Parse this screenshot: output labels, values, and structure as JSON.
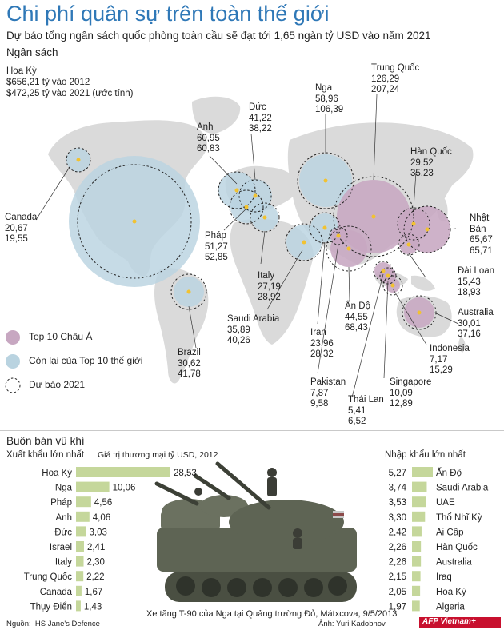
{
  "title": "Chi phí quân sự trên toàn thế giới",
  "subtitle": "Dự báo tổng ngân sách quốc phòng toàn cầu sẽ đạt tới 1,65 ngàn tỷ USD vào năm 2021",
  "budget_section_title": "Ngân sách",
  "colors": {
    "title": "#2f78b7",
    "asia": "#c7a7c1",
    "rest": "#b9d3e0",
    "land": "#d8d8d8",
    "bar": "#c5d79b",
    "dot": "#f2c230"
  },
  "legend": {
    "asia": "Top 10 Châu Á",
    "rest": "Còn lại của Top 10 thế giới",
    "forecast": "Dự báo 2021"
  },
  "countries": {
    "us": {
      "name": "Hoa Kỳ",
      "line1": "$656,21 tỷ vào 2012",
      "line2": "$472,25 tỷ vào 2021 (ước tính)"
    },
    "canada": {
      "name": "Canada",
      "v2012": "20,67",
      "v2021": "19,55"
    },
    "uk": {
      "name": "Anh",
      "v2012": "60,95",
      "v2021": "60,83"
    },
    "germany": {
      "name": "Đức",
      "v2012": "41,22",
      "v2021": "38,22"
    },
    "france": {
      "name": "Pháp",
      "v2012": "51,27",
      "v2021": "52,85"
    },
    "italy": {
      "name": "Italy",
      "v2012": "27,19",
      "v2021": "28,92"
    },
    "russia": {
      "name": "Nga",
      "v2012": "58,96",
      "v2021": "106,39"
    },
    "china": {
      "name": "Trung Quốc",
      "v2012": "126,29",
      "v2021": "207,24"
    },
    "korea": {
      "name": "Hàn Quốc",
      "v2012": "29,52",
      "v2021": "35,23"
    },
    "japan": {
      "name": "Nhật\nBản",
      "v2012": "65,67",
      "v2021": "65,71"
    },
    "taiwan": {
      "name": "Đài Loan",
      "v2012": "15,43",
      "v2021": "18,93"
    },
    "australia": {
      "name": "Australia",
      "v2012": "30,01",
      "v2021": "37,16"
    },
    "indonesia": {
      "name": "Indonesia",
      "v2012": "7,17",
      "v2021": "15,29"
    },
    "singapore": {
      "name": "Singapore",
      "v2012": "10,09",
      "v2021": "12,89"
    },
    "thailand": {
      "name": "Thái Lan",
      "v2012": "5,41",
      "v2021": "6,52"
    },
    "pakistan": {
      "name": "Pakistan",
      "v2012": "7,87",
      "v2021": "9,58"
    },
    "iran": {
      "name": "Iran",
      "v2012": "23,96",
      "v2021": "28,32"
    },
    "india": {
      "name": "Ấn Độ",
      "v2012": "44,55",
      "v2021": "68,43"
    },
    "saudi": {
      "name": "Saudi Arabia",
      "v2012": "35,89",
      "v2021": "40,26"
    },
    "brazil": {
      "name": "Brazil",
      "v2012": "30,62",
      "v2021": "41,78"
    }
  },
  "arms_section_title": "Buôn bán vũ khí",
  "exports_title": "Xuất khẩu lớn nhất",
  "trade_value_label": "Giá trị thương mại tỷ USD, 2012",
  "imports_title": "Nhập khẩu lớn nhất",
  "chart_data": [
    {
      "type": "bar",
      "title": "Xuất khẩu lớn nhất",
      "subtitle": "Giá trị thương mại tỷ USD, 2012",
      "categories": [
        "Hoa Kỳ",
        "Nga",
        "Pháp",
        "Anh",
        "Đức",
        "Israel",
        "Italy",
        "Trung Quốc",
        "Canada",
        "Thụy Điển"
      ],
      "values": [
        28.53,
        10.06,
        4.56,
        4.06,
        3.03,
        2.41,
        2.3,
        2.22,
        1.67,
        1.43
      ],
      "labels": [
        "28,53",
        "10,06",
        "4,56",
        "4,06",
        "3,03",
        "2,41",
        "2,30",
        "2,22",
        "1,67",
        "1,43"
      ]
    },
    {
      "type": "bar",
      "title": "Nhập khẩu lớn nhất",
      "categories": [
        "Ấn Độ",
        "Saudi Arabia",
        "UAE",
        "Thổ Nhĩ Kỳ",
        "Ai Cập",
        "Hàn Quốc",
        "Australia",
        "Iraq",
        "Hoa Kỳ",
        "Algeria"
      ],
      "values": [
        5.27,
        3.74,
        3.53,
        3.3,
        2.42,
        2.26,
        2.26,
        2.15,
        2.05,
        1.97
      ],
      "labels": [
        "5,27",
        "3,74",
        "3,53",
        "3,30",
        "2,42",
        "2,26",
        "2,26",
        "2,15",
        "2,05",
        "1,97"
      ]
    }
  ],
  "photo_caption": "Xe tăng T-90 của Nga tại Quảng trường Đỏ, Mátxcova, 9/5/2013",
  "photo_credit": "Ảnh: Yuri Kadobnov",
  "source": "Nguồn: IHS Jane's Defence",
  "logo_text": "AFP Vietnam+"
}
